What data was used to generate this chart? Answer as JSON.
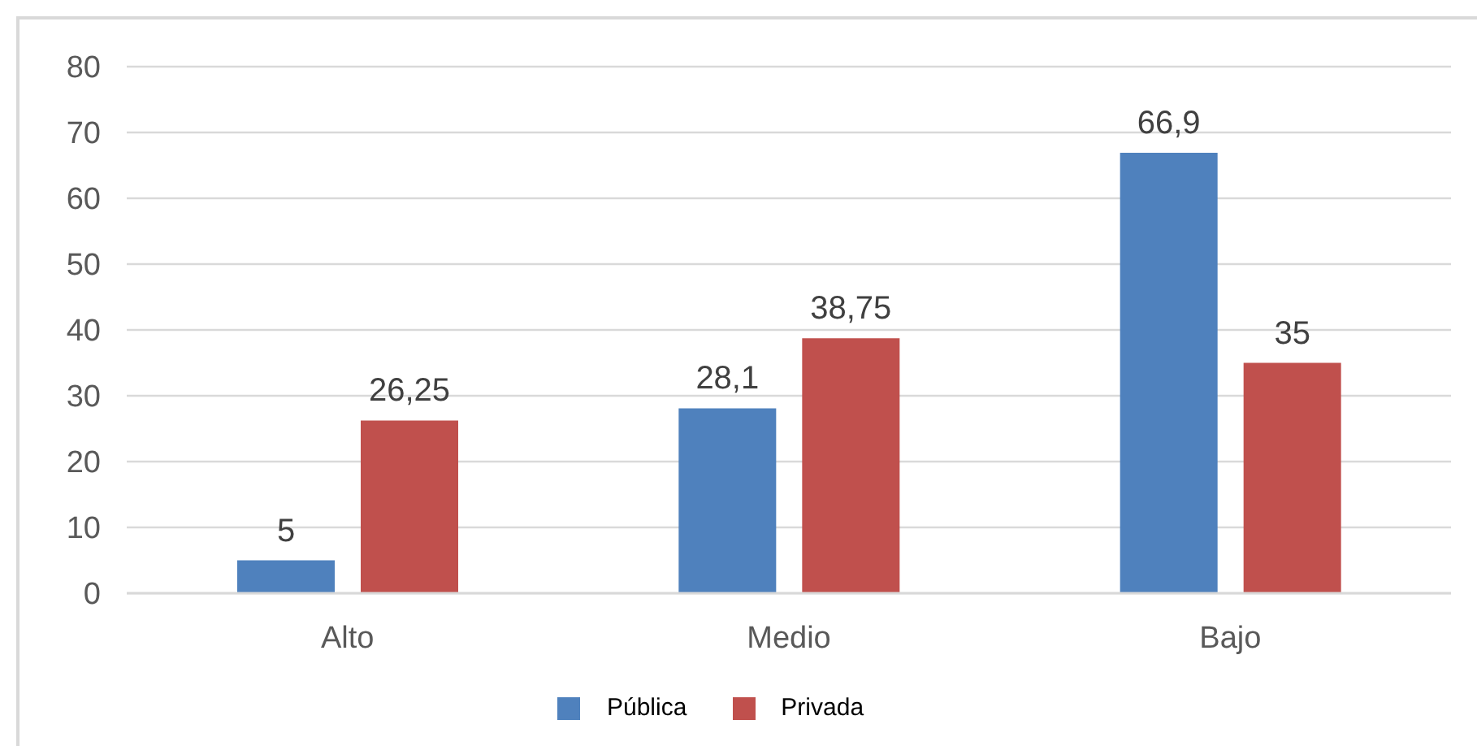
{
  "chart_data": {
    "type": "bar",
    "categories": [
      "Alto",
      "Medio",
      "Bajo"
    ],
    "series": [
      {
        "name": "Pública",
        "color": "#4f81bd",
        "values": [
          5,
          28.1,
          66.9
        ],
        "value_labels": [
          "5",
          "28,1",
          "66,9"
        ]
      },
      {
        "name": "Privada",
        "color": "#c0504d",
        "values": [
          26.25,
          38.75,
          35
        ],
        "value_labels": [
          "26,25",
          "38,75",
          "35"
        ]
      }
    ],
    "ylim": [
      0,
      80
    ],
    "yticks": [
      0,
      10,
      20,
      30,
      40,
      50,
      60,
      70,
      80
    ],
    "grid": "y",
    "legend": "bottom"
  }
}
